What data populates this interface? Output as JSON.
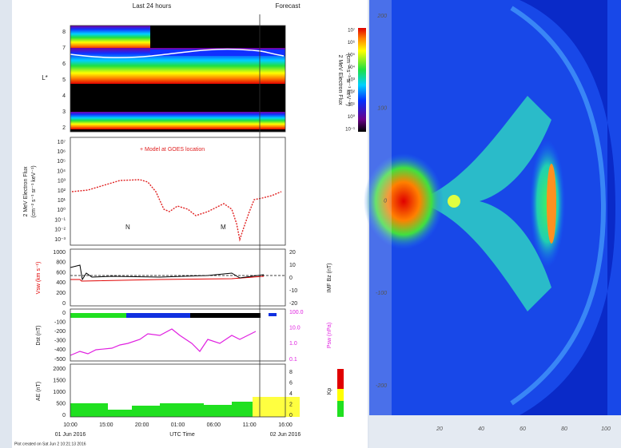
{
  "left_figure": {
    "header": {
      "history": "Last 24 hours",
      "forecast": "Forecast"
    },
    "panel_lstar": {
      "ylabel": "L*",
      "yticks": [
        "8",
        "7",
        "6",
        "5",
        "4",
        "3",
        "2"
      ],
      "colorbar": {
        "label": "2 MeV Electron Flux",
        "units": "(cm⁻² s⁻¹ sr⁻¹ keV⁻¹)",
        "ticks": [
          "10⁷",
          "10⁶",
          "10⁵",
          "10⁴",
          "10³",
          "10²",
          "10¹",
          "10⁰",
          "10⁻¹"
        ]
      }
    },
    "panel_flux": {
      "ylabel": "2 MeV Electron Flux",
      "units": "(cm⁻² s⁻¹ sr⁻¹ keV⁻¹)",
      "yticks": [
        "10⁷",
        "10⁶",
        "10⁵",
        "10⁴",
        "10³",
        "10²",
        "10¹",
        "10⁰",
        "10⁻¹",
        "10⁻²",
        "10⁻³"
      ],
      "legend": "+ Model at GOES location",
      "annotations": [
        "N",
        "M"
      ]
    },
    "panel_solar_wind": {
      "ylabel_left": "Vsw (km s⁻¹)",
      "ylabel_right": "IMF Bz (nT)",
      "yticks_left": [
        "1000",
        "800",
        "600",
        "400",
        "200",
        "0"
      ],
      "yticks_right": [
        "20",
        "10",
        "0",
        "-10",
        "-20"
      ]
    },
    "panel_dst": {
      "ylabel_left": "Dst (nT)",
      "ylabel_right": "Psw (nPa)",
      "yticks_left": [
        "0",
        "-100",
        "-200",
        "-300",
        "-400",
        "-500"
      ],
      "yticks_right": [
        "100.0",
        "10.0",
        "1.0",
        "0.1"
      ]
    },
    "panel_ae": {
      "ylabel_left": "AE (nT)",
      "ylabel_right": "Kp",
      "yticks_left": [
        "2000",
        "1500",
        "1000",
        "500",
        "0"
      ],
      "yticks_right": [
        "8",
        "6",
        "4",
        "2",
        "0"
      ]
    },
    "xaxis": {
      "label": "UTC Time",
      "ticks": [
        "10:00",
        "15:00",
        "20:00",
        "01:00",
        "06:00",
        "11:00",
        "16:00"
      ],
      "date_start": "01 Jun 2016",
      "date_end": "02 Jun 2016"
    },
    "footer": "Plot created on Sat Jun 2 10:21:13 2016"
  },
  "right_figure": {
    "yticks": [
      "200",
      "100",
      "0",
      "-100",
      "-200"
    ],
    "xticks": [
      "20",
      "40",
      "60",
      "80",
      "100"
    ]
  }
}
